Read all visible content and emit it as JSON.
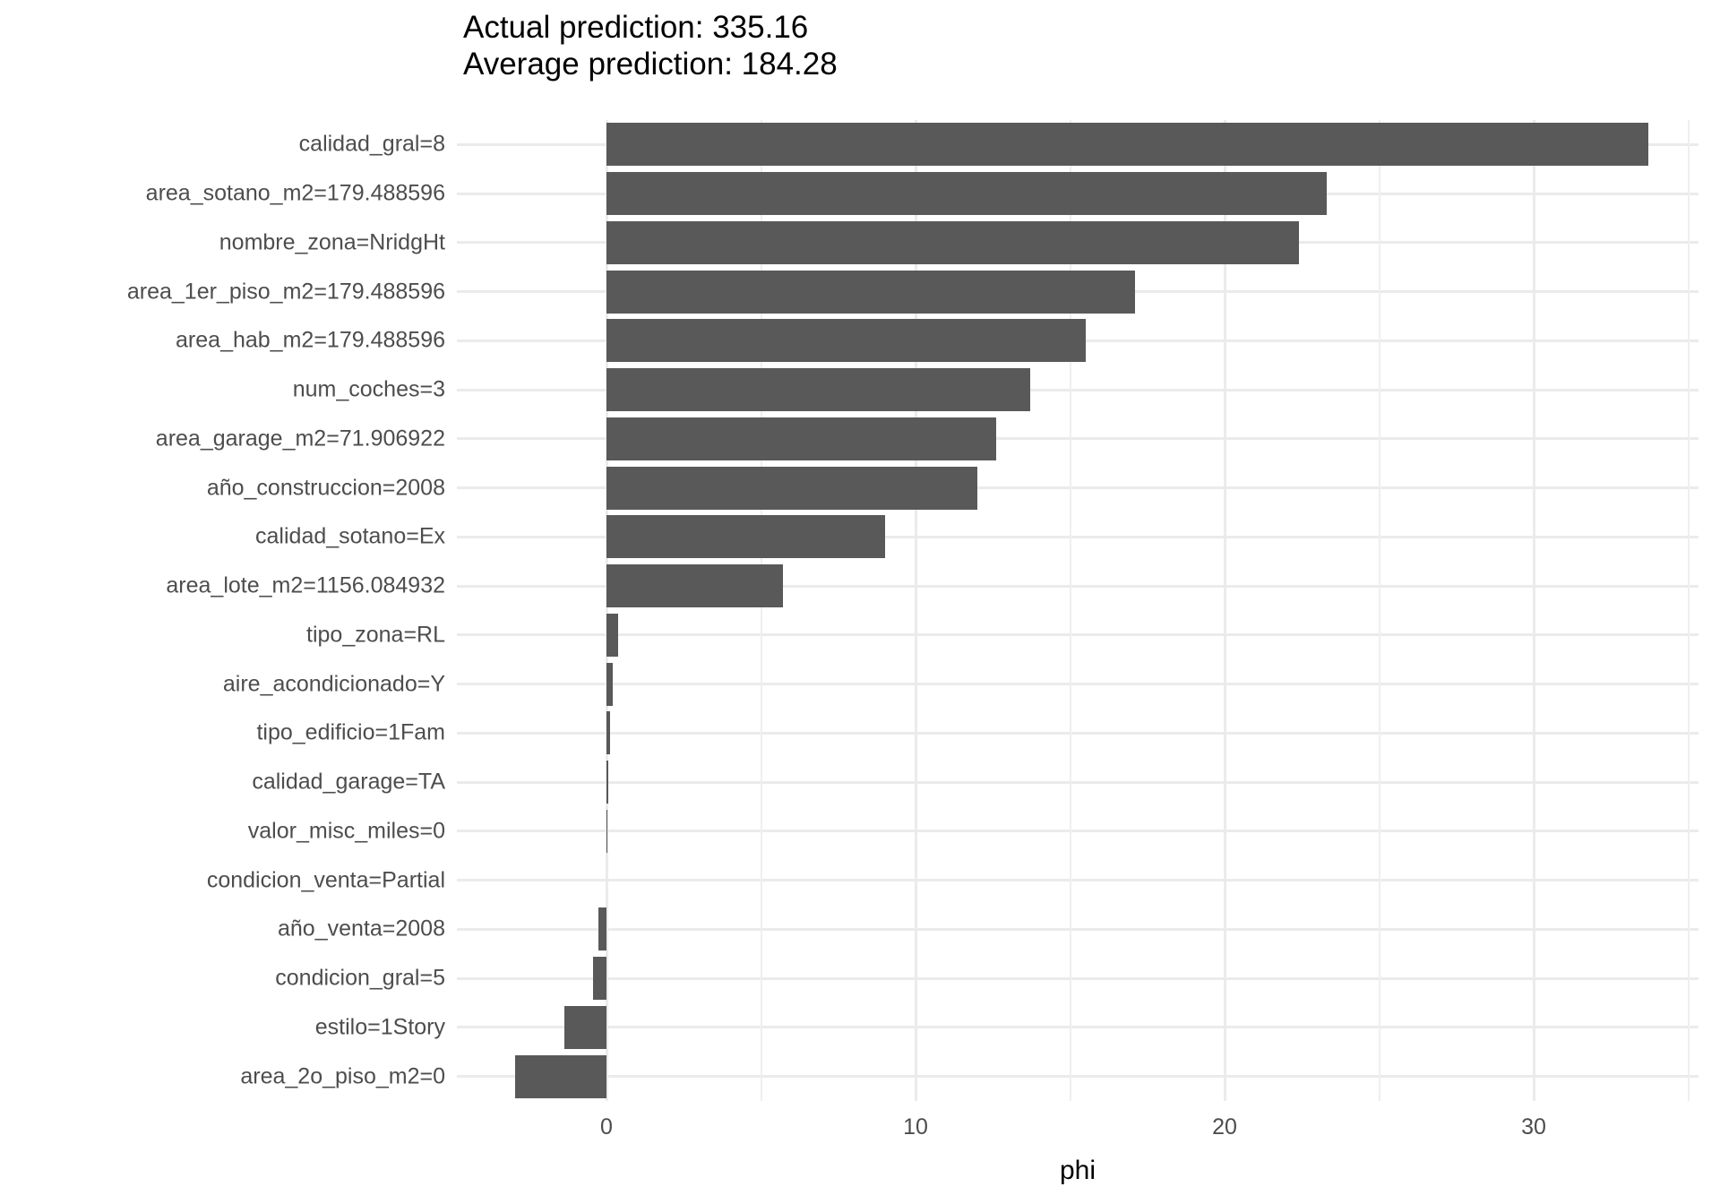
{
  "chart_data": {
    "type": "bar",
    "orientation": "horizontal",
    "title_lines": [
      "Actual prediction: 335.16",
      "Average prediction: 184.28"
    ],
    "xlabel": "phi",
    "ylabel": "",
    "categories": [
      "calidad_gral=8",
      "area_sotano_m2=179.488596",
      "nombre_zona=NridgHt",
      "area_1er_piso_m2=179.488596",
      "area_hab_m2=179.488596",
      "num_coches=3",
      "area_garage_m2=71.906922",
      "año_construccion=2008",
      "calidad_sotano=Ex",
      "area_lote_m2=1156.084932",
      "tipo_zona=RL",
      "aire_acondicionado=Y",
      "tipo_edificio=1Fam",
      "calidad_garage=TA",
      "valor_misc_miles=0",
      "condicion_venta=Partial",
      "año_venta=2008",
      "condicion_gral=5",
      "estilo=1Story",
      "area_2o_piso_m2=0"
    ],
    "values": [
      33.7,
      23.3,
      22.4,
      17.1,
      15.5,
      13.7,
      12.6,
      12.0,
      9.0,
      5.7,
      0.38,
      0.21,
      0.13,
      0.06,
      0.01,
      0.0,
      -0.26,
      -0.43,
      -1.36,
      -2.96
    ],
    "xlim": [
      -4.85,
      35.35
    ],
    "x_ticks": [
      0,
      10,
      20,
      30
    ],
    "x_tick_labels": [
      "0",
      "10",
      "20",
      "30"
    ],
    "x_minor_ticks": [
      5,
      15,
      25,
      35
    ],
    "grid": "on",
    "legend": "none",
    "bar_color": "#595959",
    "grid_major_color": "#EBEBEB",
    "grid_minor_color": "#EFEFEF",
    "axis_text_color": "#4D4D4D",
    "title_color": "#000000"
  }
}
